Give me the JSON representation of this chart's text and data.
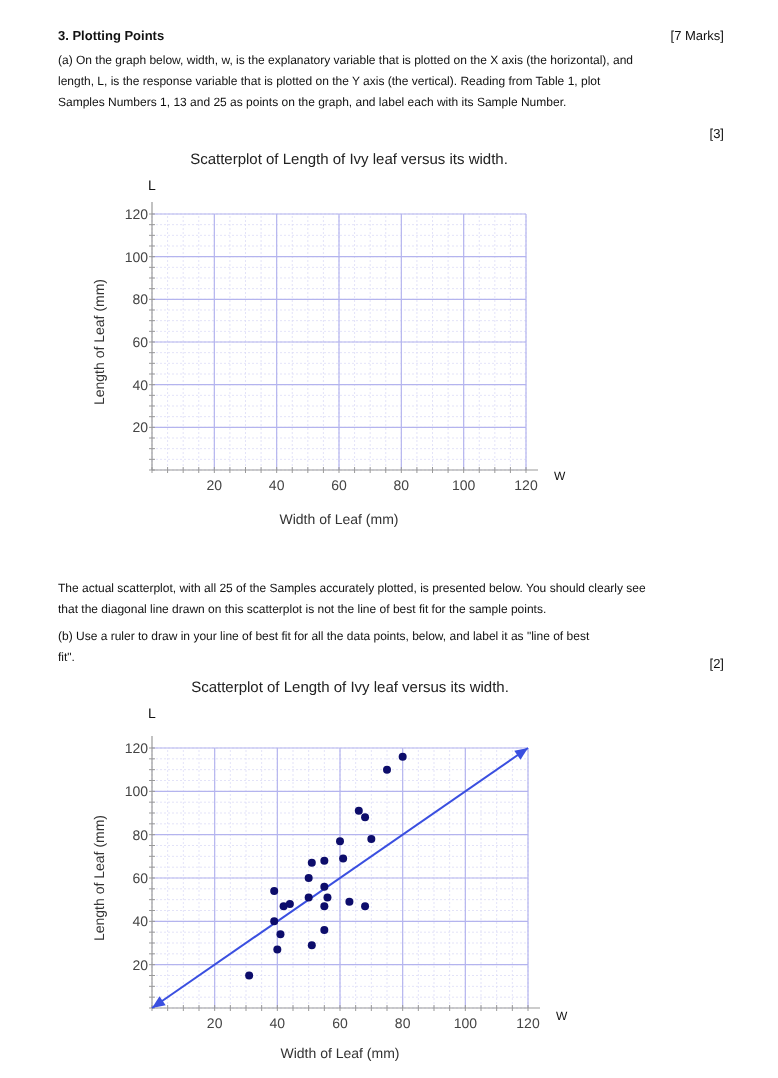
{
  "chart_data": [
    {
      "type": "scatter",
      "title": "Scatterplot of Length of Ivy leaf versus its width.",
      "xlabel": "Width of Leaf (mm)",
      "ylabel": "Length of Leaf (mm)",
      "xlim": [
        0,
        120
      ],
      "ylim": [
        0,
        120
      ],
      "xticks": [
        20,
        40,
        60,
        80,
        100,
        120
      ],
      "yticks": [
        20,
        40,
        60,
        80,
        100,
        120
      ],
      "grid": true,
      "annotations": [
        "3.  Plotting Points",
        "[7 Marks]",
        "(a) On the graph below, width, w, is the explanatory variable that is plotted on the X axis (the horizontal), and length, L, is the response variable that is plotted on the Y axis (the vertical).  Reading from Table 1, plot Samples Numbers 1, 13 and 25 as points on the graph, and label each with its Sample Number.",
        "[3]",
        "L",
        "W"
      ]
    },
    {
      "type": "scatter",
      "title": "Scatterplot of Length of Ivy leaf versus its width.",
      "xlabel": "Width of Leaf (mm)",
      "ylabel": "Length of Leaf (mm)",
      "xlim": [
        0,
        120
      ],
      "ylim": [
        0,
        120
      ],
      "xticks": [
        20,
        40,
        60,
        80,
        100,
        120
      ],
      "yticks": [
        20,
        40,
        60,
        80,
        100,
        120
      ],
      "grid": true,
      "marker": "circle",
      "series": [
        {
          "type": "scatter",
          "color": "#0d0d6b",
          "x": [
            31,
            39,
            39,
            40,
            41,
            42,
            44,
            50,
            50,
            51,
            51,
            55,
            55,
            55,
            56,
            55,
            60,
            61,
            63,
            66,
            68,
            68,
            70,
            75,
            80
          ],
          "values": [
            15,
            54,
            40,
            27,
            34,
            47,
            48,
            51,
            60,
            67,
            29,
            68,
            56,
            47,
            51,
            36,
            77,
            69,
            49,
            91,
            88,
            47,
            78,
            110,
            116
          ]
        }
      ],
      "annotations": [
        "The actual scatterplot, with all 25 of the Samples accurately plotted, is presented below.  You should clearly see that the diagonal line drawn on this scatterplot is not the line of best fit for the sample points.",
        "(b) Use a ruler to draw in your line of best fit for all the data points, below, and label it as \"line of best fit\".",
        "[2]",
        "L",
        "W"
      ]
    }
  ]
}
